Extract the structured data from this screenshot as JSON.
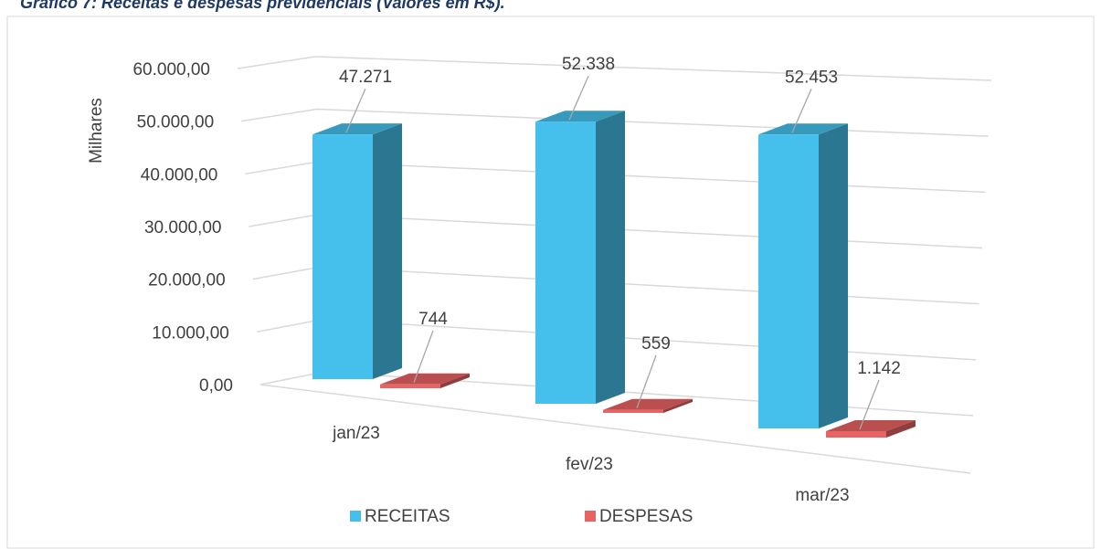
{
  "chart_data": {
    "type": "bar3d",
    "title": "Gráfico 7: Receitas e despesas previdenciais (Valores em R$).",
    "y_label": "Milhares",
    "categories": [
      "jan/23",
      "fev/23",
      "mar/23"
    ],
    "series": [
      {
        "name": "RECEITAS",
        "color": "#45c0ec",
        "values": [
          47271,
          52338,
          52453
        ],
        "value_labels": [
          "47.271",
          "52.338",
          "52.453"
        ]
      },
      {
        "name": "DESPESAS",
        "color": "#e86363",
        "values": [
          744,
          559,
          1142
        ],
        "value_labels": [
          "744",
          "559",
          "1.142"
        ]
      }
    ],
    "ylim": [
      0,
      60000
    ],
    "yticks": [
      {
        "value": 0,
        "label": "0,00"
      },
      {
        "value": 10000,
        "label": "10.000,00"
      },
      {
        "value": 20000,
        "label": "20.000,00"
      },
      {
        "value": 30000,
        "label": "30.000,00"
      },
      {
        "value": 40000,
        "label": "40.000,00"
      },
      {
        "value": 50000,
        "label": "50.000,00"
      },
      {
        "value": 60000,
        "label": "60.000,00"
      }
    ],
    "grid": true,
    "legend": "bottom"
  }
}
